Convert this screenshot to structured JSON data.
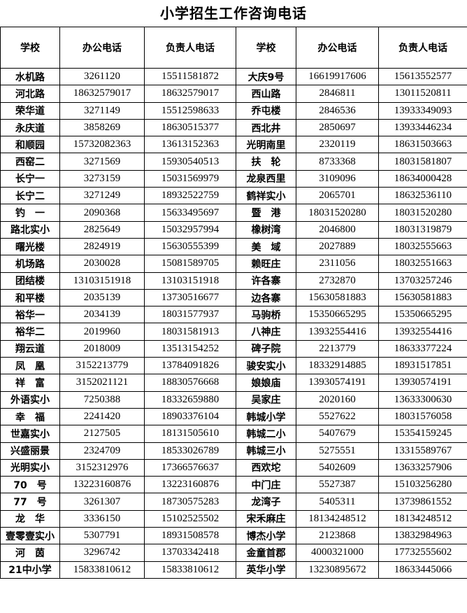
{
  "title": "小学招生工作咨询电话",
  "headers": [
    "学校",
    "办公电话",
    "负责人电话",
    "学校",
    "办公电话",
    "负责人电话"
  ],
  "rows": [
    [
      "水机路",
      "3261120",
      "15511581872",
      "大庆9号",
      "16619917606",
      "15613552577"
    ],
    [
      "河北路",
      "18632579017",
      "18632579017",
      "西山路",
      "2846811",
      "13011520811"
    ],
    [
      "荣华道",
      "3271149",
      "15512598633",
      "乔屯楼",
      "2846536",
      "13933349093"
    ],
    [
      "永庆道",
      "3858269",
      "18630515377",
      "西北井",
      "2850697",
      "13933446234"
    ],
    [
      "和顺园",
      "15732082363",
      "13613152363",
      "光明南里",
      "2320119",
      "18631503663"
    ],
    [
      "西窑二",
      "3271569",
      "15930540513",
      "扶　轮",
      "8733368",
      "18031581807"
    ],
    [
      "长宁一",
      "3273159",
      "15031569979",
      "龙泉西里",
      "3109096",
      "18634000428"
    ],
    [
      "长宁二",
      "3271249",
      "18932522759",
      "鹤祥实小",
      "2065701",
      "18632536110"
    ],
    [
      "钓　一",
      "2090368",
      "15633495697",
      "暨　港",
      "18031520280",
      "18031520280"
    ],
    [
      "路北实小",
      "2825649",
      "15032957994",
      "橡树湾",
      "2046800",
      "18031319879"
    ],
    [
      "曙光楼",
      "2824919",
      "15630555399",
      "美　域",
      "2027889",
      "18032555663"
    ],
    [
      "机场路",
      "2030028",
      "15081589705",
      "赖旺庄",
      "2311056",
      "18032551663"
    ],
    [
      "团结楼",
      "13103151918",
      "13103151918",
      "许各寨",
      "2732870",
      "13703257246"
    ],
    [
      "和平楼",
      "2035139",
      "13730516677",
      "边各寨",
      "15630581883",
      "15630581883"
    ],
    [
      "裕华一",
      "2034139",
      "18031577937",
      "马驹桥",
      "15350665295",
      "15350665295"
    ],
    [
      "裕华二",
      "2019960",
      "18031581913",
      "八神庄",
      "13932554416",
      "13932554416"
    ],
    [
      "翔云道",
      "2018009",
      "13513154252",
      "碑子院",
      "2213779",
      "18633377224"
    ],
    [
      "凤　凰",
      "3152213779",
      "13784091826",
      "骏安实小",
      "18332914885",
      "18931517851"
    ],
    [
      "祥　富",
      "3152021121",
      "18830576668",
      "娘娘庙",
      "13930574191",
      "13930574191"
    ],
    [
      "外语实小",
      "7250388",
      "18332659880",
      "吴家庄",
      "2020160",
      "13633300630"
    ],
    [
      "幸　福",
      "2241420",
      "18903376104",
      "韩城小学",
      "5527622",
      "18031576058"
    ],
    [
      "世嘉实小",
      "2127505",
      "18131505610",
      "韩城二小",
      "5407679",
      "15354159245"
    ],
    [
      "兴盛丽景",
      "2324709",
      "18533026789",
      "韩城三小",
      "5275551",
      "13315589767"
    ],
    [
      "光明实小",
      "3152312976",
      "17366576637",
      "西欢坨",
      "5402609",
      "13633257906"
    ],
    [
      "70　号",
      "13223160876",
      "13223160876",
      "中门庄",
      "5527387",
      "15103256280"
    ],
    [
      "77　号",
      "3261307",
      "18730575283",
      "龙湾子",
      "5405311",
      "13739861552"
    ],
    [
      "龙　华",
      "3336150",
      "15102525502",
      "宋禾麻庄",
      "18134248512",
      "18134248512"
    ],
    [
      "壹零壹实小",
      "5307791",
      "18931508578",
      "博杰小学",
      "2123868",
      "13832984963"
    ],
    [
      "河　茵",
      "3296742",
      "13703342418",
      "金童首郡",
      "4000321000",
      "17732555602"
    ],
    [
      "21中小学",
      "15833810612",
      "15833810612",
      "英华小学",
      "13230895672",
      "18633445066"
    ]
  ]
}
